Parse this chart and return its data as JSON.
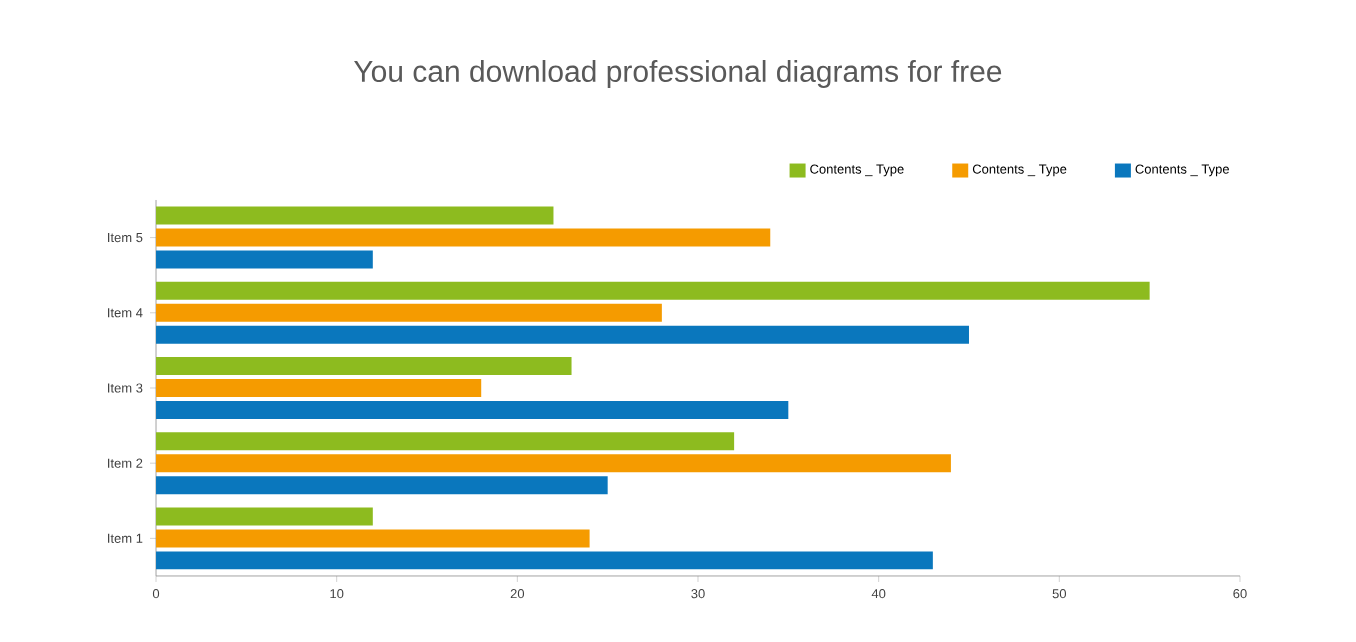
{
  "chart_data": {
    "type": "bar",
    "orientation": "horizontal",
    "title": "You can download professional diagrams for free",
    "categories": [
      "Item 5",
      "Item 4",
      "Item 3",
      "Item 2",
      "Item 1"
    ],
    "series": [
      {
        "name": "Contents _ Type",
        "color": "#8dbb1f",
        "values": [
          22,
          55,
          23,
          32,
          12
        ]
      },
      {
        "name": "Contents _ Type",
        "color": "#f59b00",
        "values": [
          34,
          28,
          18,
          44,
          24
        ]
      },
      {
        "name": "Contents _ Type",
        "color": "#0a77bd",
        "values": [
          12,
          45,
          35,
          25,
          43
        ]
      }
    ],
    "xlim": [
      0,
      60
    ],
    "xticks": [
      0,
      10,
      20,
      30,
      40,
      50,
      60
    ],
    "grid": false,
    "legend": "top right"
  }
}
